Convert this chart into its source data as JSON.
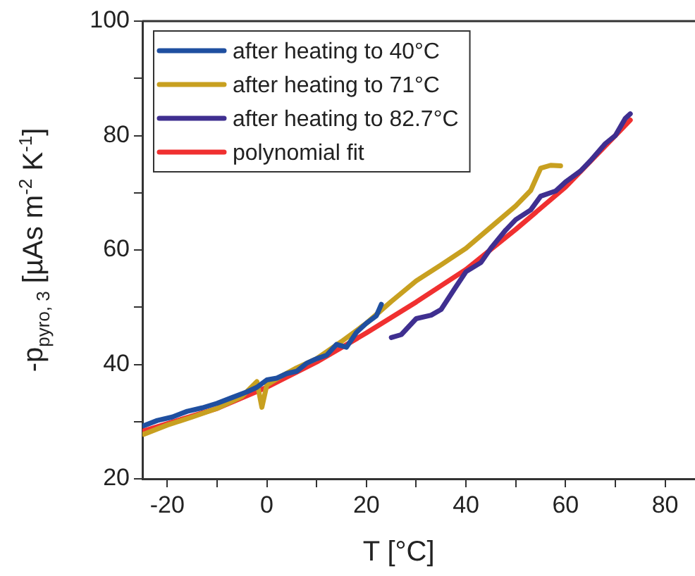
{
  "chart_data": {
    "type": "line",
    "xlabel": "T [°C]",
    "ylabel": "-p$_{pyro, 3}$ [µAs m$^{-2}$ K$^{-1}$]",
    "xlim": [
      -25,
      86
    ],
    "xticks": [
      -20,
      {
        "value": -10,
        "label": null
      },
      0,
      {
        "value": 10,
        "label": null
      },
      20,
      {
        "value": 30,
        "label": null
      },
      40,
      {
        "value": 50,
        "label": null
      },
      60,
      {
        "value": 70,
        "label": null
      },
      80
    ],
    "ylim": [
      20,
      100
    ],
    "yticks": [
      20,
      {
        "value": 30,
        "label": null
      },
      40,
      {
        "value": 50,
        "label": null
      },
      60,
      {
        "value": 70,
        "label": null
      },
      80,
      {
        "value": 90,
        "label": null
      },
      100
    ],
    "grid": false,
    "legend": "top left",
    "marker": "none",
    "line_style": "solid",
    "series": [
      {
        "name": "after heating to 40°C",
        "color": "#1f4fa0",
        "x": [
          -24.7,
          -22,
          -19,
          -16,
          -13,
          -10,
          -7,
          -4,
          -2,
          0,
          2,
          4,
          6,
          8,
          10,
          12,
          14,
          16,
          18,
          20,
          22,
          23
        ],
        "values": [
          29.3,
          30.2,
          30.8,
          31.8,
          32.4,
          33.2,
          34.2,
          35.2,
          36.0,
          37.3,
          37.6,
          38.4,
          38.8,
          40.2,
          41.0,
          41.6,
          43.5,
          43.0,
          45.6,
          47.2,
          48.5,
          50.5
        ]
      },
      {
        "name": "after heating to 71°C",
        "color": "#c8a020",
        "x": [
          -24.7,
          -20,
          -15,
          -10,
          -5,
          -2,
          -1,
          0,
          3,
          6,
          10,
          15,
          20,
          25,
          30,
          35,
          40,
          45,
          50,
          53,
          55,
          57,
          59
        ],
        "values": [
          27.8,
          29.4,
          30.8,
          32.3,
          34.4,
          37.0,
          32.5,
          36.4,
          38.0,
          39.4,
          41.0,
          44.0,
          47.2,
          51.0,
          54.6,
          57.4,
          60.3,
          64.0,
          67.7,
          70.4,
          74.3,
          74.8,
          74.7
        ]
      },
      {
        "name": "after heating to 82.7°C",
        "color": "#3f2f90",
        "x": [
          25,
          27,
          30,
          33,
          35,
          38,
          40,
          43,
          45,
          48,
          50,
          53,
          55,
          58,
          60,
          63,
          65,
          68,
          70,
          72,
          73
        ],
        "values": [
          44.7,
          45.2,
          48.0,
          48.6,
          49.6,
          53.6,
          56.2,
          57.8,
          60.3,
          63.5,
          65.3,
          67.0,
          69.4,
          70.3,
          71.9,
          73.8,
          75.6,
          78.6,
          80.0,
          83.0,
          83.8
        ]
      },
      {
        "name": "polynomial fit",
        "color": "#f03030",
        "x": [
          -24.7,
          -10,
          0,
          10,
          20,
          30,
          40,
          50,
          60,
          70,
          73
        ],
        "values": [
          28.4,
          32.3,
          36.0,
          40.4,
          45.5,
          50.9,
          56.6,
          63.6,
          71.0,
          80.0,
          82.7
        ]
      }
    ]
  }
}
